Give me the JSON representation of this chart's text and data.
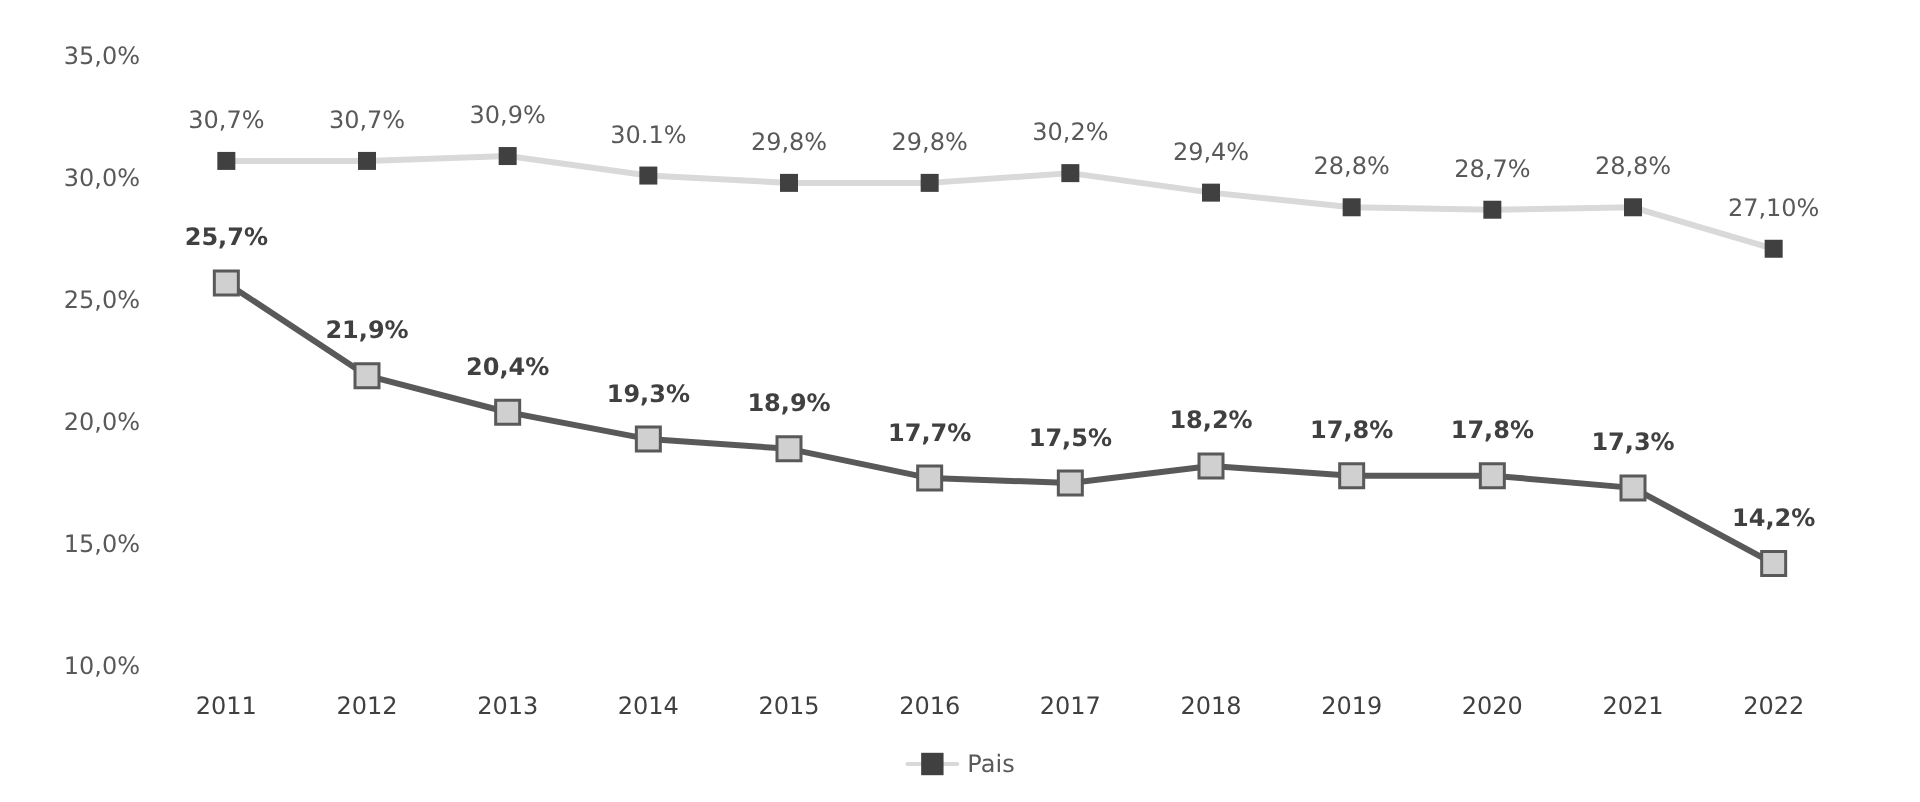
{
  "chart_data": {
    "type": "line",
    "categories": [
      "2011",
      "2012",
      "2013",
      "2014",
      "2015",
      "2016",
      "2017",
      "2018",
      "2019",
      "2020",
      "2021",
      "2022"
    ],
    "series": [
      {
        "color": "#595959",
        "values": [
          25.7,
          21.9,
          20.4,
          19.3,
          18.9,
          17.7,
          17.5,
          18.2,
          17.8,
          17.8,
          17.3,
          14.2
        ],
        "value_labels": [
          "25,7%",
          "21,9%",
          "20,4%",
          "19,3%",
          "18,9%",
          "17,7%",
          "17,5%",
          "18,2%",
          "17,8%",
          "17,8%",
          "17,3%",
          "14,2%"
        ]
      },
      {
        "name": "Pais",
        "color": "#d9d9d9",
        "values": [
          30.7,
          30.7,
          30.9,
          30.1,
          29.8,
          29.8,
          30.2,
          29.4,
          28.8,
          28.7,
          28.8,
          27.1
        ],
        "value_labels": [
          "30,7%",
          "30,7%",
          "30,9%",
          "30.1%",
          "29,8%",
          "29,8%",
          "30,2%",
          "29,4%",
          "28,8%",
          "28,7%",
          "28,8%",
          "27,10%"
        ]
      }
    ],
    "ylim": [
      10,
      35
    ],
    "yticks": [
      {
        "value": 10,
        "label": "10,0%"
      },
      {
        "value": 15,
        "label": "15,0%"
      },
      {
        "value": 20,
        "label": "20,0%"
      },
      {
        "value": 25,
        "label": "25,0%"
      },
      {
        "value": 30,
        "label": "30,0%"
      },
      {
        "value": 35,
        "label": "35,0%"
      }
    ],
    "grid": false,
    "legend": "bottom",
    "marker": "square",
    "line_style": "solid"
  }
}
